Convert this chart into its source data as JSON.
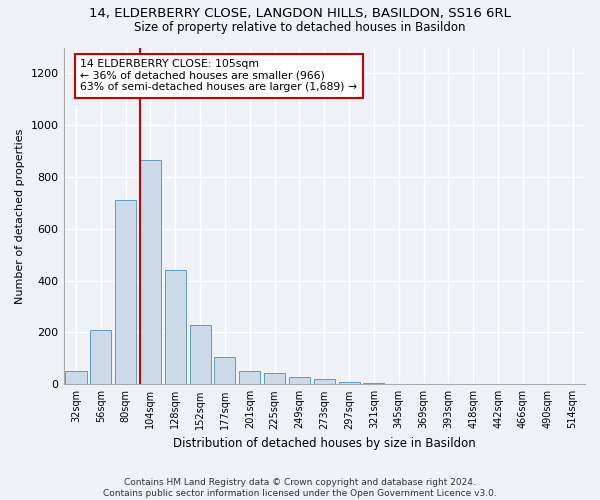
{
  "title1": "14, ELDERBERRY CLOSE, LANGDON HILLS, BASILDON, SS16 6RL",
  "title2": "Size of property relative to detached houses in Basildon",
  "xlabel": "Distribution of detached houses by size in Basildon",
  "ylabel": "Number of detached properties",
  "categories": [
    "32sqm",
    "56sqm",
    "80sqm",
    "104sqm",
    "128sqm",
    "152sqm",
    "177sqm",
    "201sqm",
    "225sqm",
    "249sqm",
    "273sqm",
    "297sqm",
    "321sqm",
    "345sqm",
    "369sqm",
    "393sqm",
    "418sqm",
    "442sqm",
    "466sqm",
    "490sqm",
    "514sqm"
  ],
  "values": [
    50,
    210,
    710,
    865,
    440,
    230,
    105,
    50,
    45,
    30,
    20,
    10,
    5,
    0,
    0,
    0,
    0,
    0,
    0,
    0,
    0
  ],
  "bar_color": "#ccd9e8",
  "bar_edge_color": "#6699bb",
  "ylim": [
    0,
    1300
  ],
  "yticks": [
    0,
    200,
    400,
    600,
    800,
    1000,
    1200
  ],
  "annotation_text": "14 ELDERBERRY CLOSE: 105sqm\n← 36% of detached houses are smaller (966)\n63% of semi-detached houses are larger (1,689) →",
  "annotation_box_color": "#ffffff",
  "annotation_box_edge": "#cc0000",
  "red_line_color": "#cc0000",
  "footer_line1": "Contains HM Land Registry data © Crown copyright and database right 2024.",
  "footer_line2": "Contains public sector information licensed under the Open Government Licence v3.0.",
  "bg_color": "#eef2f7",
  "plot_bg_color": "#eef2f7",
  "grid_color": "#ffffff",
  "title1_fontsize": 9.5,
  "title2_fontsize": 8.5
}
